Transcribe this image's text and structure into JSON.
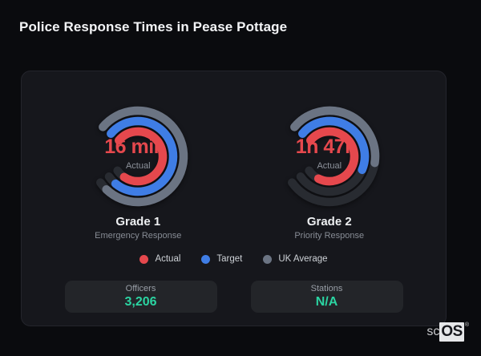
{
  "title": "Police Response Times in Pease Pottage",
  "colors": {
    "actual": "#e5484d",
    "target": "#3f7de5",
    "uk_average": "#6b7483",
    "track": "#282b31",
    "stat_value": "#2bd4a2"
  },
  "chart_data": [
    {
      "type": "gauge",
      "title": "Grade 1",
      "subtitle": "Emergency Response",
      "center_value": "16 min",
      "center_label": "Actual",
      "start_angle": -50,
      "span": 285,
      "rings": [
        {
          "name": "UK Average",
          "color": "#6b7483",
          "fill": 0.96
        },
        {
          "name": "Target",
          "color": "#3f7de5",
          "fill": 0.945
        },
        {
          "name": "Actual",
          "color": "#e5484d",
          "fill": 0.925
        }
      ]
    },
    {
      "type": "gauge",
      "title": "Grade 2",
      "subtitle": "Priority Response",
      "center_value": "1h 47m",
      "center_label": "Actual",
      "start_angle": -50,
      "span": 285,
      "rings": [
        {
          "name": "UK Average",
          "color": "#6b7483",
          "fill": 0.52
        },
        {
          "name": "Target",
          "color": "#3f7de5",
          "fill": 0.57
        },
        {
          "name": "Actual",
          "color": "#e5484d",
          "fill": 0.9
        }
      ]
    }
  ],
  "legend": {
    "items": [
      {
        "label": "Actual",
        "color": "#e5484d"
      },
      {
        "label": "Target",
        "color": "#3f7de5"
      },
      {
        "label": "UK Average",
        "color": "#6b7483"
      }
    ]
  },
  "stats": [
    {
      "label": "Officers",
      "value": "3,206"
    },
    {
      "label": "Stations",
      "value": "N/A"
    }
  ],
  "watermark": {
    "prefix": "sc",
    "suffix": "OS",
    "reg": "®"
  }
}
